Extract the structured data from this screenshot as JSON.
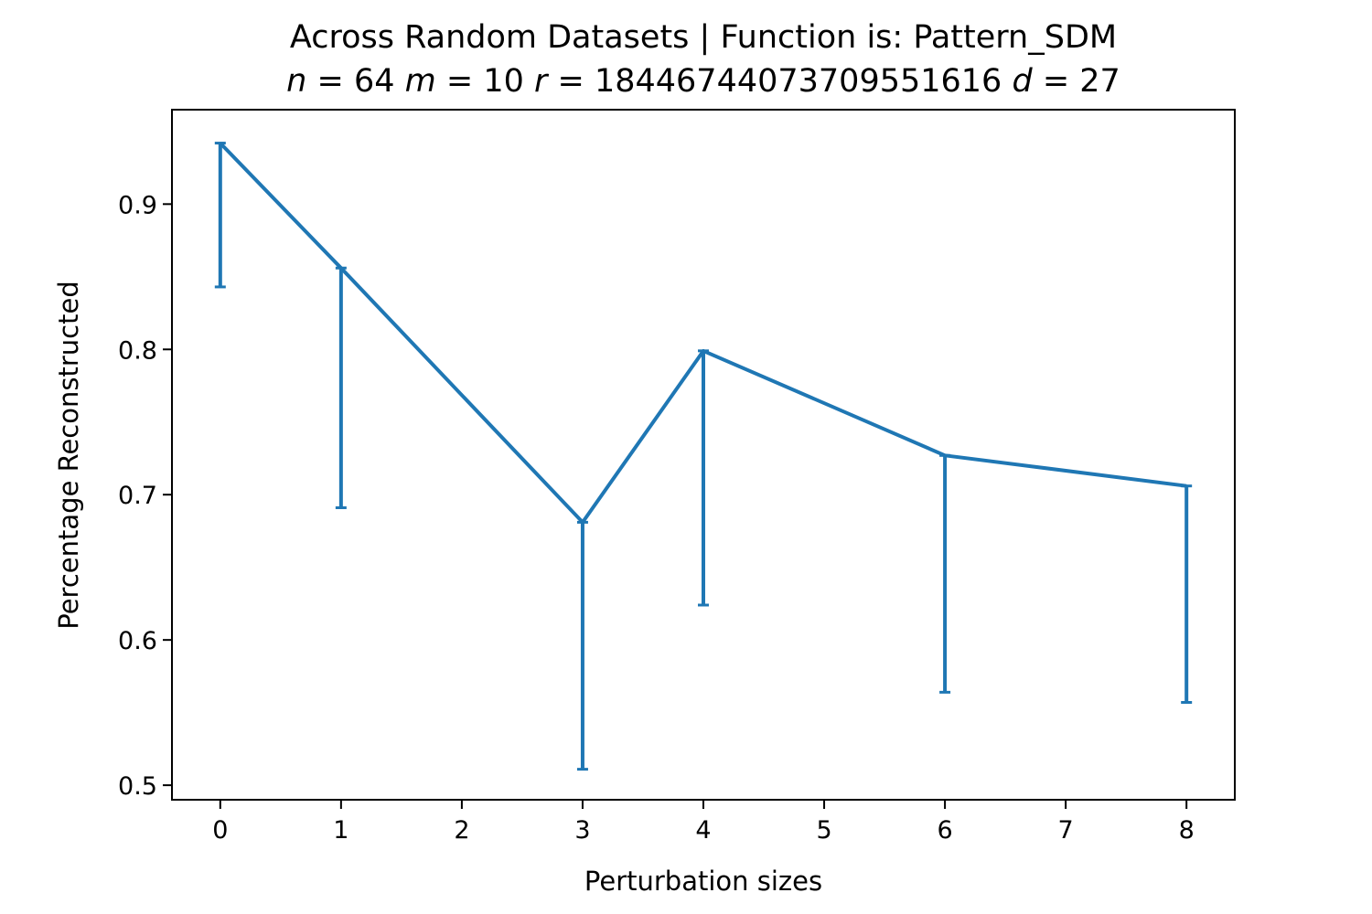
{
  "chart_data": {
    "type": "line",
    "title": "Across Random Datasets | Function is: Pattern_SDM",
    "subtitle": {
      "n_label": "n",
      "n_value": "64",
      "m_label": "m",
      "m_value": "10",
      "r_label": "r",
      "r_value": "18446744073709551616",
      "d_label": "d",
      "d_value": "27"
    },
    "xlabel": "Perturbation sizes",
    "ylabel": "Percentage Reconstructed",
    "xlim": [
      -0.4,
      8.4
    ],
    "ylim": [
      0.49,
      0.965
    ],
    "xticks": [
      0,
      1,
      2,
      3,
      4,
      5,
      6,
      7,
      8
    ],
    "yticks": [
      0.5,
      0.6,
      0.7,
      0.8,
      0.9
    ],
    "ytick_labels": [
      "0.5",
      "0.6",
      "0.7",
      "0.8",
      "0.9"
    ],
    "grid": false,
    "color": "#1f77b4",
    "series": [
      {
        "x": [
          0,
          1,
          3,
          4,
          6,
          8
        ],
        "y": [
          0.942,
          0.856,
          0.681,
          0.799,
          0.727,
          0.706
        ],
        "error_lower": [
          0.843,
          0.691,
          0.511,
          0.624,
          0.564,
          0.557
        ]
      }
    ]
  }
}
